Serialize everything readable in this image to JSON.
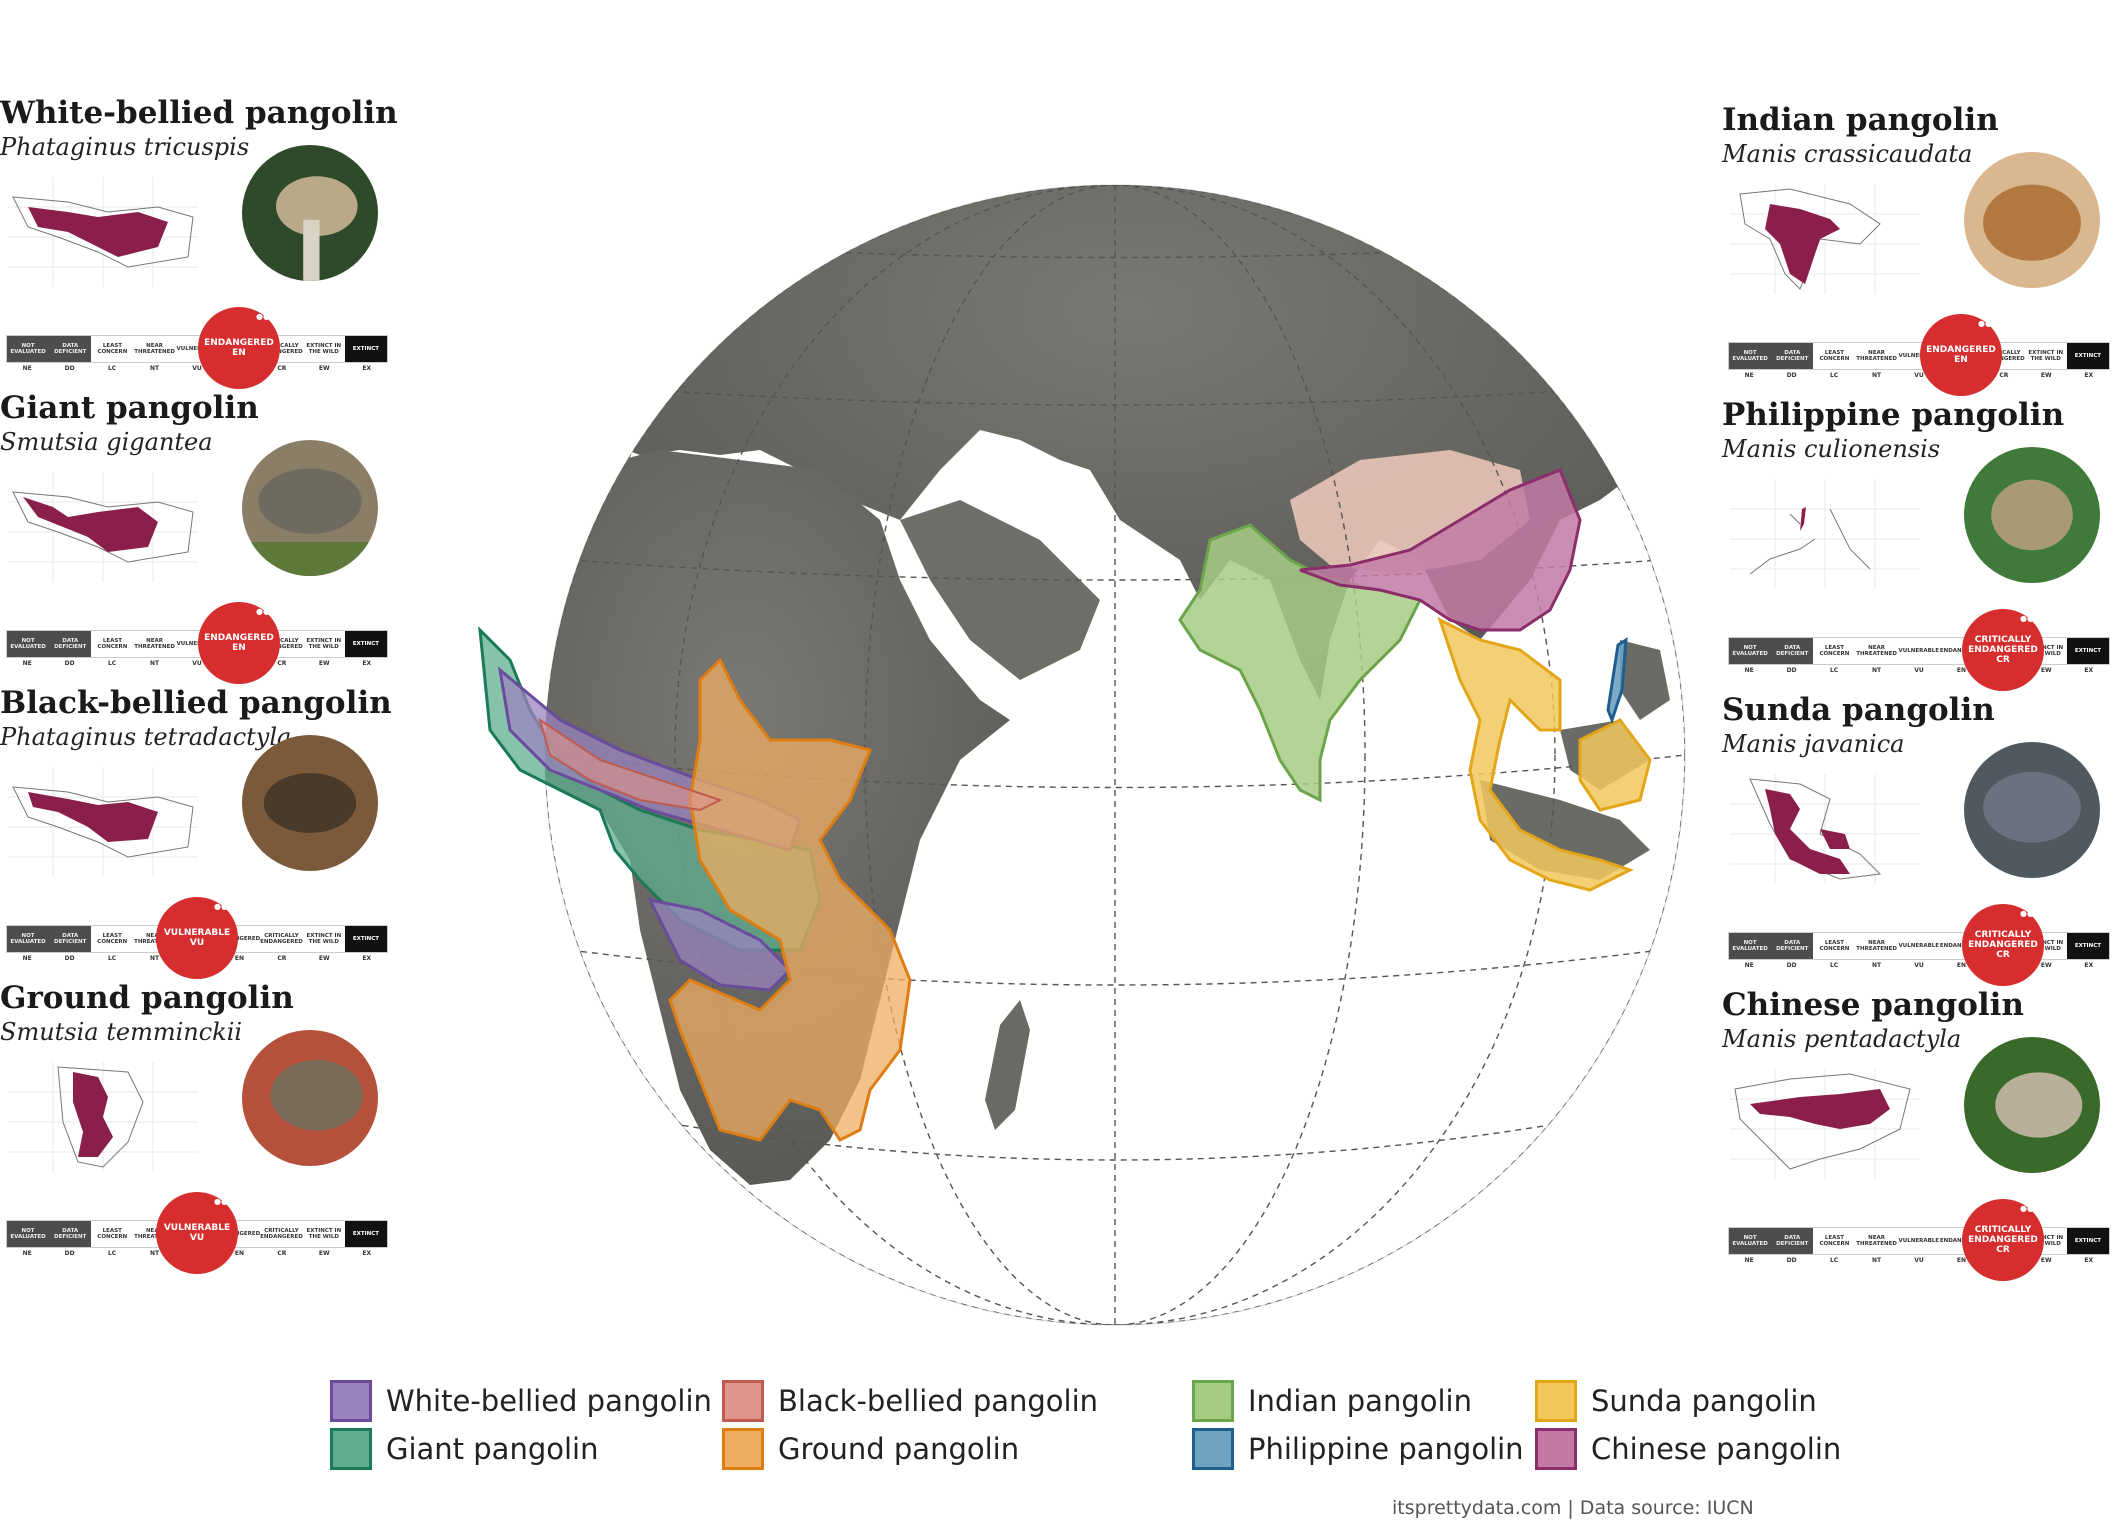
{
  "species": [
    {
      "id": "white-bellied",
      "name": "White-bellied pangolin",
      "scientific": "Phataginus tricuspis",
      "status": "ENDANGERED",
      "status_code": "EN",
      "side": "left"
    },
    {
      "id": "giant",
      "name": "Giant pangolin",
      "scientific": "Smutsia gigantea",
      "status": "ENDANGERED",
      "status_code": "EN",
      "side": "left"
    },
    {
      "id": "black-bellied",
      "name": "Black-bellied pangolin",
      "scientific": "Phataginus tetradactyla",
      "status": "VULNERABLE",
      "status_code": "VU",
      "side": "left"
    },
    {
      "id": "ground",
      "name": "Ground pangolin",
      "scientific": "Smutsia temminckii",
      "status": "VULNERABLE",
      "status_code": "VU",
      "side": "left"
    },
    {
      "id": "indian",
      "name": "Indian pangolin",
      "scientific": "Manis crassicaudata",
      "status": "ENDANGERED",
      "status_code": "EN",
      "side": "right"
    },
    {
      "id": "philippine",
      "name": "Philippine pangolin",
      "scientific": "Manis culionensis",
      "status": "CRITICALLY ENDANGERED",
      "status_code": "CR",
      "side": "right"
    },
    {
      "id": "sunda",
      "name": "Sunda pangolin",
      "scientific": "Manis javanica",
      "status": "CRITICALLY ENDANGERED",
      "status_code": "CR",
      "side": "right"
    },
    {
      "id": "chinese",
      "name": "Chinese pangolin",
      "scientific": "Manis pentadactyla",
      "status": "CRITICALLY ENDANGERED",
      "status_code": "CR",
      "side": "right"
    }
  ],
  "iucn_scale": {
    "labels": [
      "NOT EVALUATED",
      "DATA DEFICIENT",
      "LEAST CONCERN",
      "NEAR THREATENED",
      "VULNERABLE",
      "ENDANGERED",
      "CRITICALLY ENDANGERED",
      "EXTINCT IN THE WILD",
      "EXTINCT"
    ],
    "codes": [
      "NE",
      "DD",
      "LC",
      "NT",
      "VU",
      "EN",
      "CR",
      "EW",
      "EX"
    ]
  },
  "legend": [
    {
      "label": "White-bellied pangolin",
      "fill": "#9a83bd",
      "stroke": "#6a4c9c"
    },
    {
      "label": "Giant pangolin",
      "fill": "#5fae8f",
      "stroke": "#1b7a57"
    },
    {
      "label": "Black-bellied pangolin",
      "fill": "#e0958a",
      "stroke": "#c05b4f"
    },
    {
      "label": "Ground pangolin",
      "fill": "#eeae62",
      "stroke": "#dd7d12"
    },
    {
      "label": "Indian pangolin",
      "fill": "#a6cc84",
      "stroke": "#6aa54a"
    },
    {
      "label": "Philippine pangolin",
      "fill": "#6fa1c1",
      "stroke": "#1e5f8f"
    },
    {
      "label": "Sunda pangolin",
      "fill": "#f2c85d",
      "stroke": "#e3a61a"
    },
    {
      "label": "Chinese pangolin",
      "fill": "#c27aa5",
      "stroke": "#8c2e6b"
    }
  ],
  "credit": "itsprettydata.com  |  Data source: IUCN",
  "colors": {
    "range_highlight": "#8b1f4b",
    "status_red": "#d62e2e",
    "land": "#6b6b66",
    "ocean": "#ffffff"
  }
}
